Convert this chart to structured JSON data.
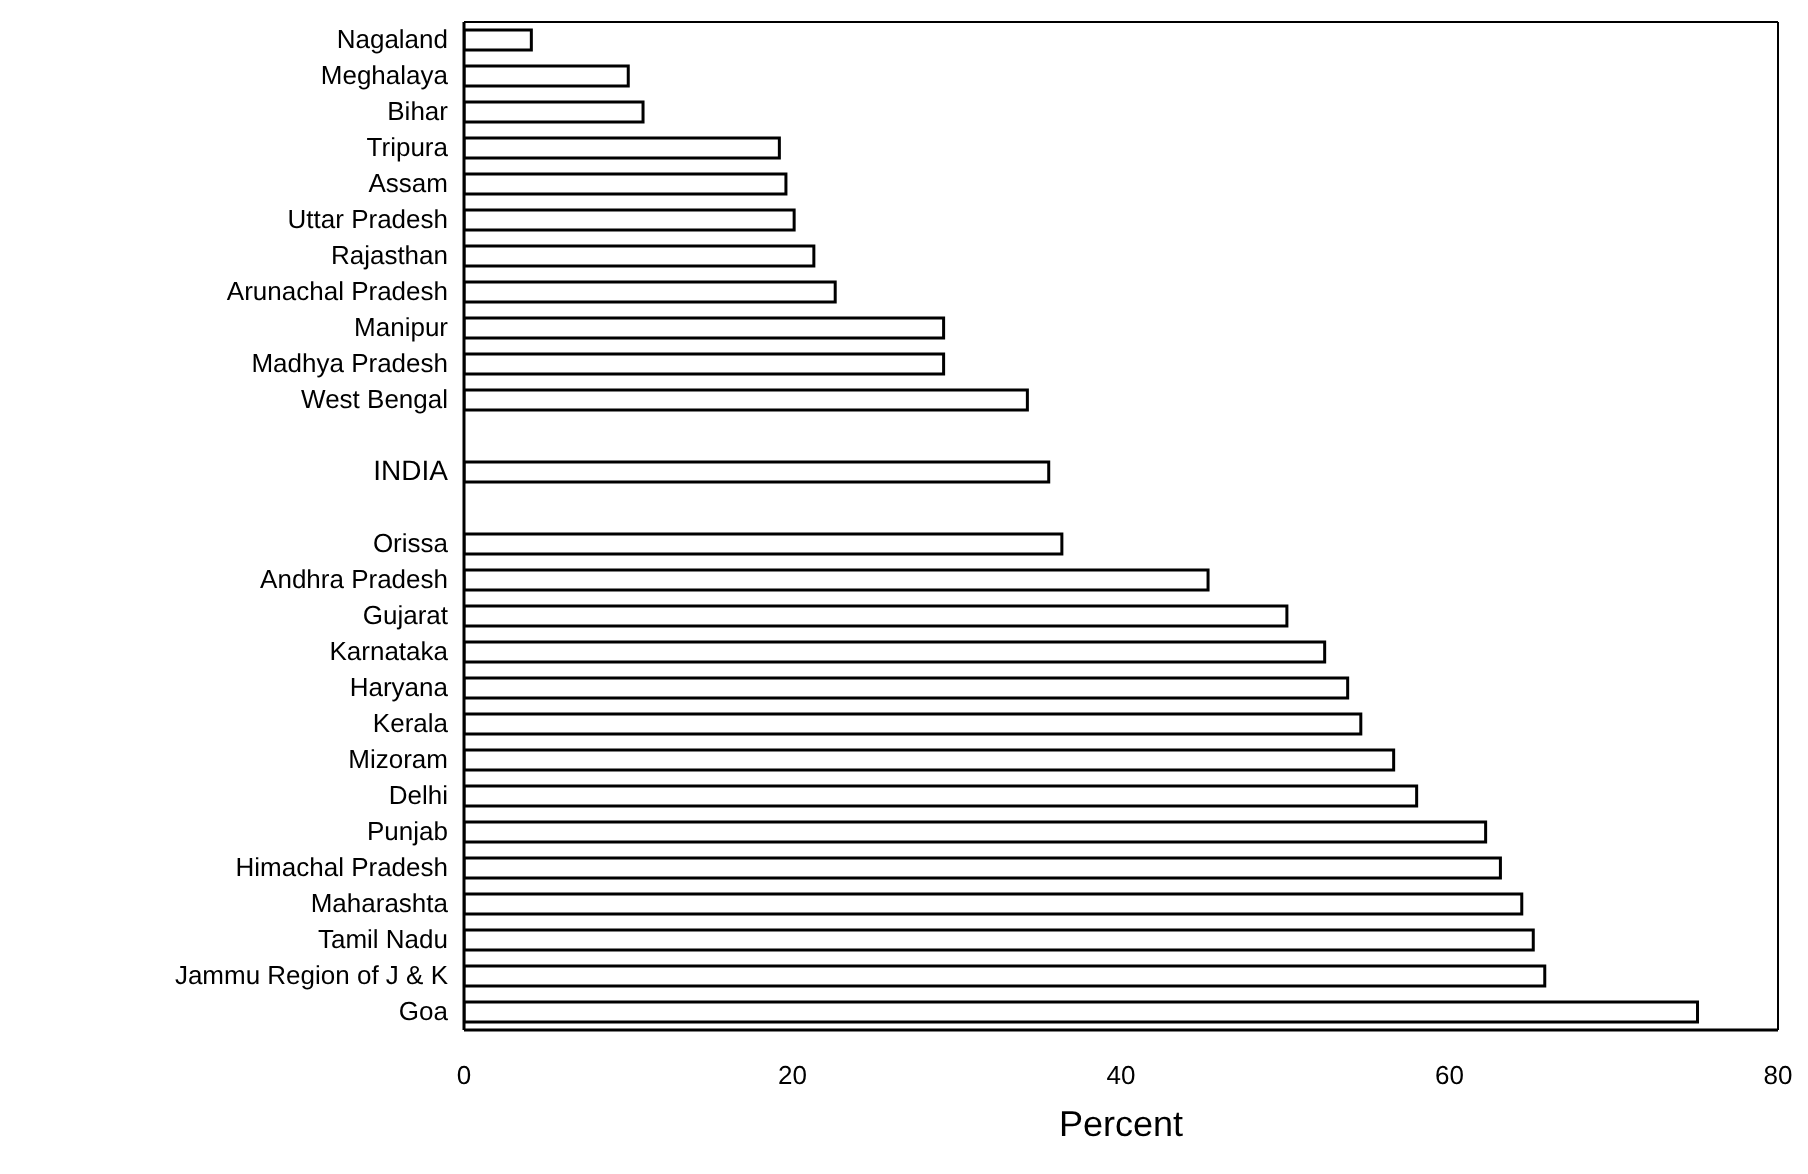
{
  "chart_data": {
    "type": "bar",
    "orientation": "horizontal",
    "xlabel": "Percent",
    "categories": [
      "Nagaland",
      "Meghalaya",
      "Bihar",
      "Tripura",
      "Assam",
      "Uttar Pradesh",
      "Rajasthan",
      "Arunachal Pradesh",
      "Manipur",
      "Madhya Pradesh",
      "West Bengal",
      null,
      "INDIA",
      null,
      "Orissa",
      "Andhra Pradesh",
      "Gujarat",
      "Karnataka",
      "Haryana",
      "Kerala",
      "Mizoram",
      "Delhi",
      "Punjab",
      "Himachal Pradesh",
      "Maharashta",
      "Tamil Nadu",
      "Jammu Region of J & K",
      "Goa"
    ],
    "values": [
      4.1,
      10.0,
      10.9,
      19.2,
      19.6,
      20.1,
      21.3,
      22.6,
      29.2,
      29.2,
      34.3,
      null,
      35.6,
      null,
      36.4,
      45.3,
      50.1,
      52.4,
      53.8,
      54.6,
      56.6,
      58.0,
      62.2,
      63.1,
      64.4,
      65.1,
      65.8,
      75.1
    ],
    "color": "#ffffff",
    "xlim": [
      0,
      80
    ],
    "xticks": [
      0,
      20,
      40,
      60,
      80
    ],
    "grid": false,
    "legend": false
  }
}
